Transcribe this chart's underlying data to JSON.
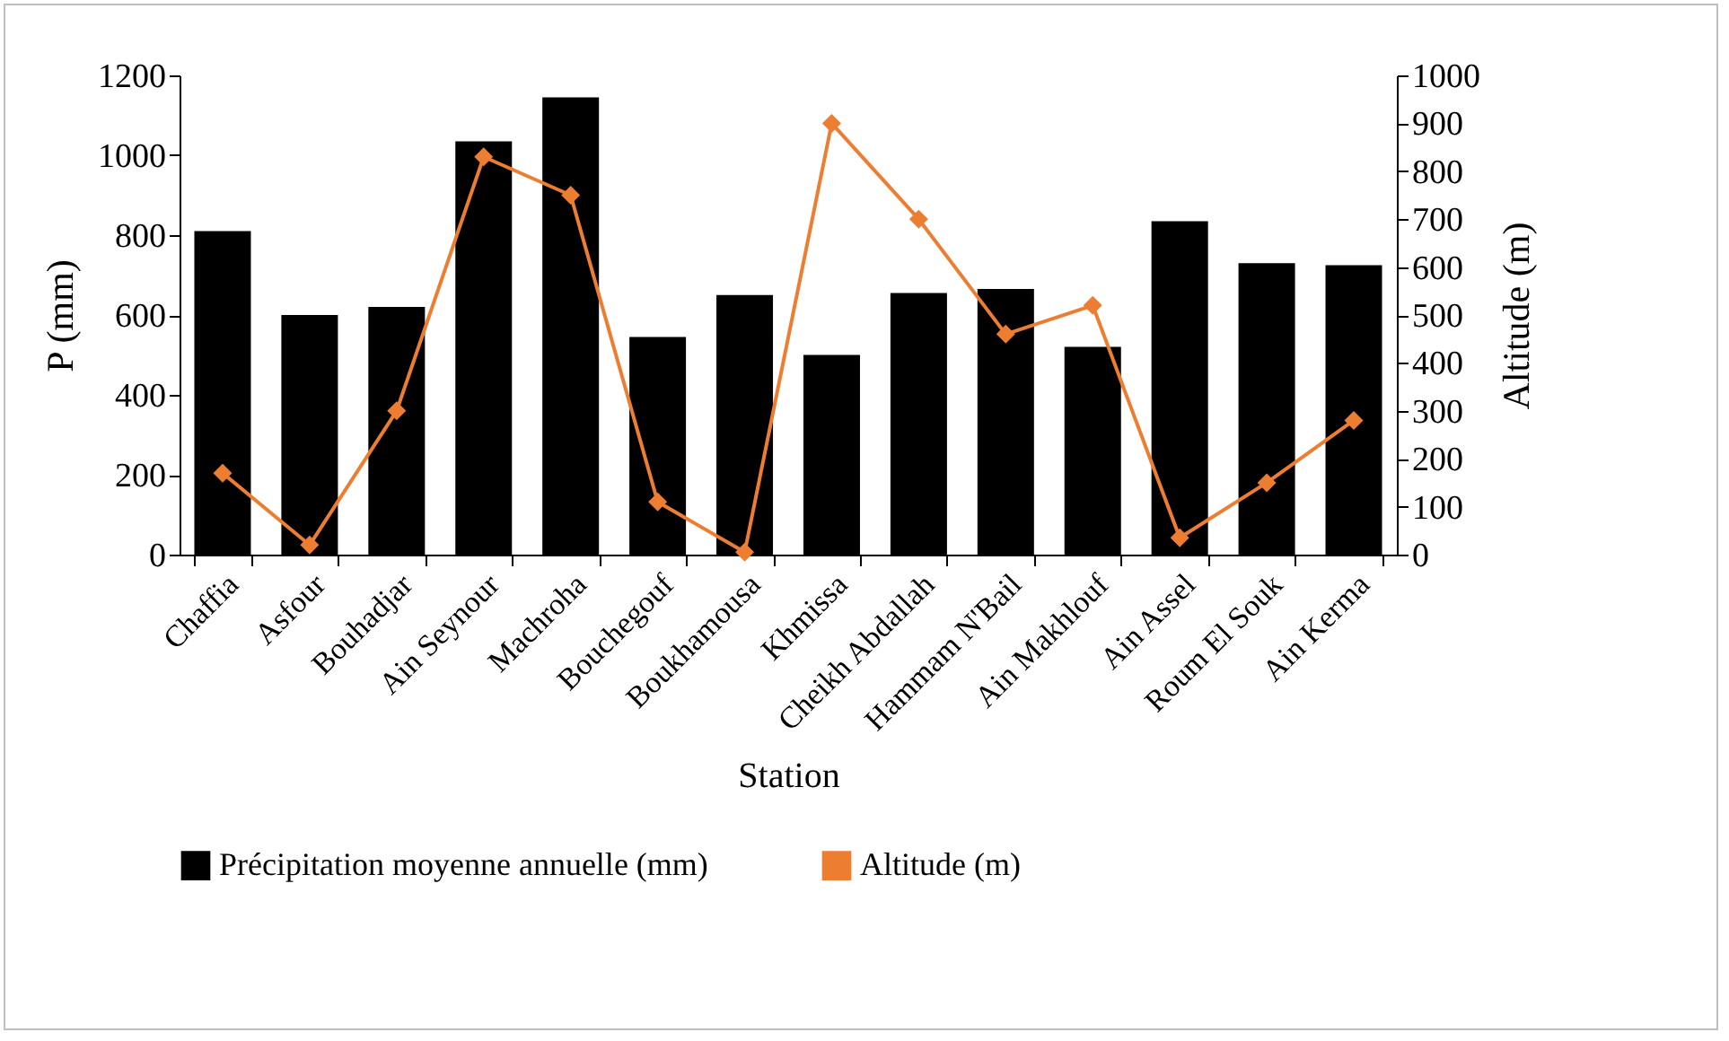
{
  "chart_data": {
    "type": "bar",
    "xlabel": "Station",
    "ylabel": "P (mm)",
    "y2label": "Altitude (m)",
    "categories": [
      "Chaffia",
      "Asfour",
      "Bouhadjar",
      "Ain Seynour",
      "Machroha",
      "Bouchegouf",
      "Boukhamousa",
      "Khmissa",
      "Cheikh Abdallah",
      "Hammam N'Bail",
      "Ain Makhlouf",
      "Ain Assel",
      "Roum El Souk",
      "Ain Kerma"
    ],
    "series": [
      {
        "name": "Précipitation moyenne annuelle (mm)",
        "color": "#000000",
        "values": [
          810,
          600,
          620,
          1035,
          1145,
          545,
          650,
          500,
          655,
          665,
          520,
          835,
          730,
          725
        ]
      },
      {
        "name": "Altitude (m)",
        "type": "line",
        "axis": "y2",
        "color": "#ed7d31",
        "marker": "diamond",
        "values": [
          170,
          20,
          300,
          830,
          750,
          110,
          5,
          900,
          700,
          460,
          520,
          35,
          150,
          280
        ]
      }
    ],
    "ylim": [
      0,
      1200
    ],
    "yticks": [
      0,
      200,
      400,
      600,
      800,
      1000,
      1200
    ],
    "y2lim": [
      0,
      1000
    ],
    "y2ticks": [
      0,
      100,
      200,
      300,
      400,
      500,
      600,
      700,
      800,
      900,
      1000
    ],
    "grid": false,
    "legend": "bottom"
  }
}
